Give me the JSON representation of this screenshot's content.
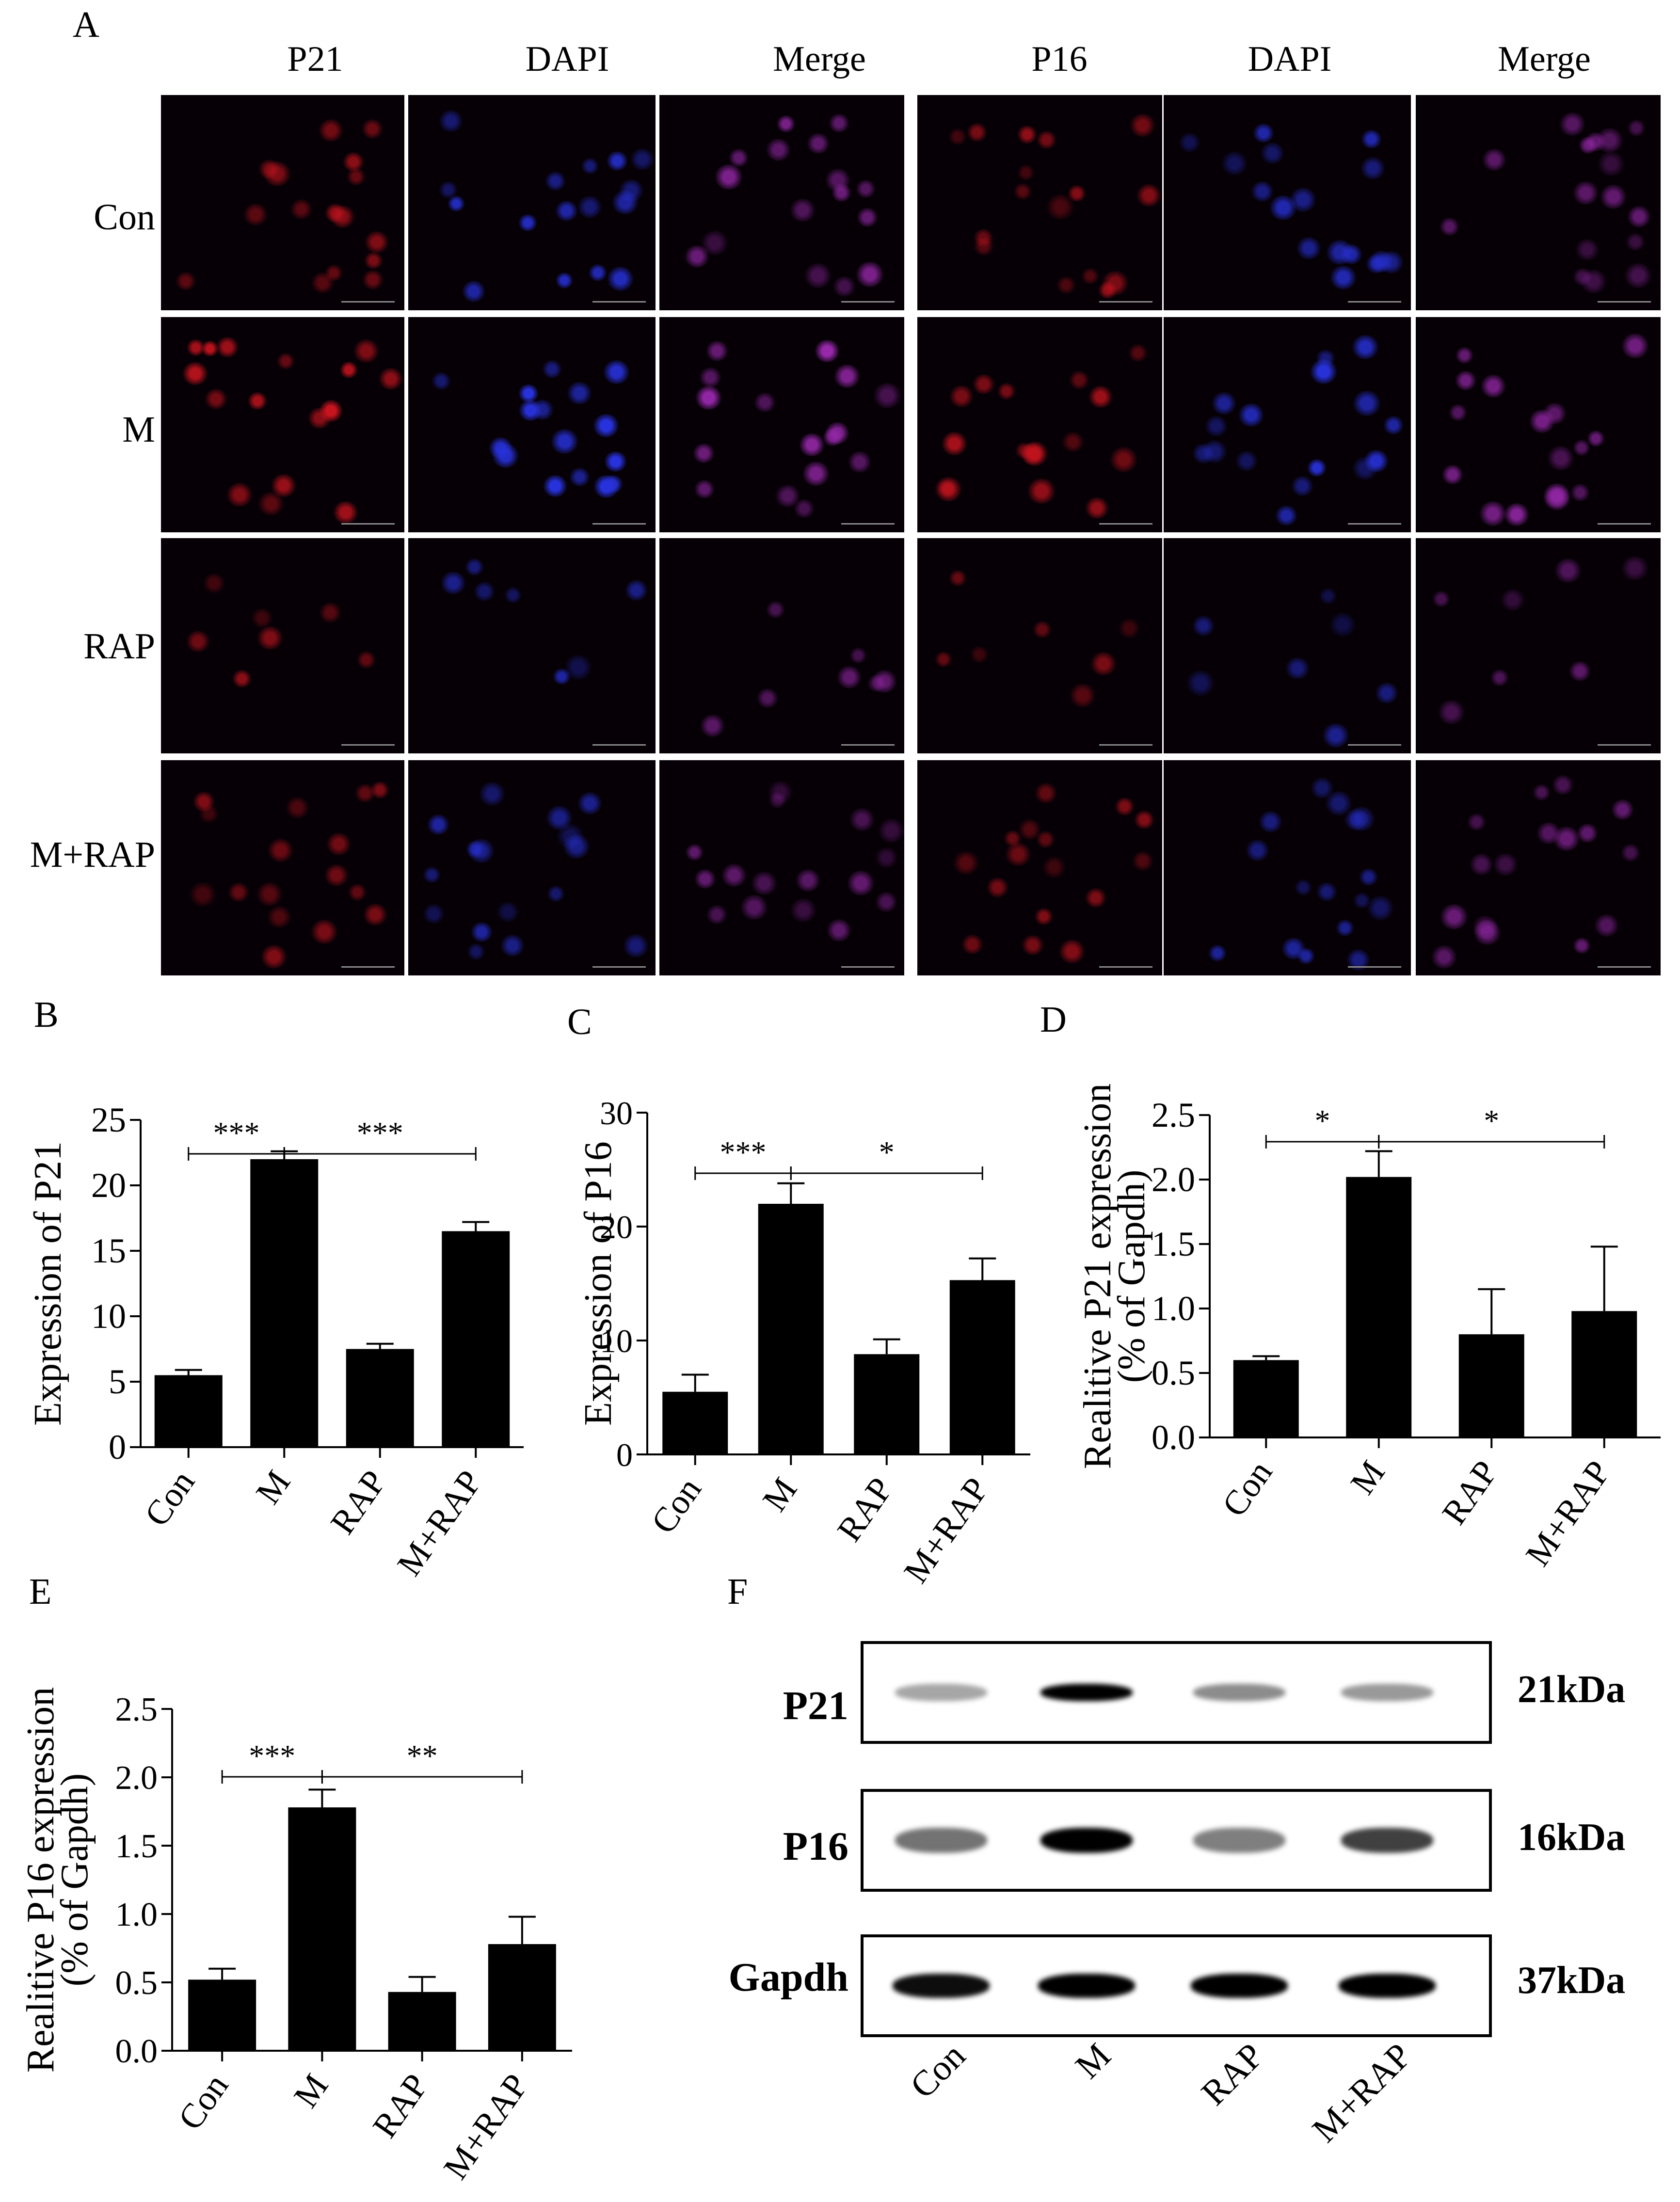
{
  "panel_letters": {
    "a": "A",
    "b": "B",
    "c": "C",
    "d": "D",
    "e": "E",
    "f": "F"
  },
  "panel_a": {
    "col_headers": [
      "P21",
      "DAPI",
      "Merge",
      "P16",
      "DAPI",
      "Merge"
    ],
    "row_labels": [
      "Con",
      "M",
      "RAP",
      "M+RAP"
    ]
  },
  "chart_data": [
    {
      "panel": "B",
      "type": "bar",
      "categories": [
        "Con",
        "M",
        "RAP",
        "M+RAP"
      ],
      "values": [
        5.5,
        22,
        7.5,
        16.5
      ],
      "errors": [
        0.4,
        0.6,
        0.4,
        0.7
      ],
      "ylabel": "Expression of P21",
      "ylim": [
        0,
        25
      ],
      "yticks": [
        "0",
        "5",
        "10",
        "15",
        "20",
        "25"
      ],
      "significance": [
        {
          "label": "***",
          "from": 0,
          "to": 1
        },
        {
          "label": "***",
          "from": 1,
          "to": 3
        }
      ]
    },
    {
      "panel": "C",
      "type": "bar",
      "categories": [
        "Con",
        "M",
        "RAP",
        "M+RAP"
      ],
      "values": [
        5.5,
        22,
        8.8,
        15.3
      ],
      "errors": [
        1.5,
        1.8,
        1.3,
        1.9
      ],
      "ylabel": "Expression of P16",
      "ylim": [
        0,
        30
      ],
      "yticks": [
        "0",
        "10",
        "20",
        "30"
      ],
      "significance": [
        {
          "label": "***",
          "from": 0,
          "to": 1
        },
        {
          "label": "*",
          "from": 1,
          "to": 3
        }
      ]
    },
    {
      "panel": "D",
      "type": "bar",
      "categories": [
        "Con",
        "M",
        "RAP",
        "M+RAP"
      ],
      "values": [
        0.6,
        2.02,
        0.8,
        0.98
      ],
      "errors": [
        0.03,
        0.2,
        0.35,
        0.5
      ],
      "ylabel": "Realitive P21 expression",
      "ylabel2": "(% of Gapdh)",
      "ylim": [
        0,
        2.5
      ],
      "yticks": [
        "0.0",
        "0.5",
        "1.0",
        "1.5",
        "2.0",
        "2.5"
      ],
      "significance": [
        {
          "label": "*",
          "from": 0,
          "to": 1
        },
        {
          "label": "*",
          "from": 1,
          "to": 3
        }
      ]
    },
    {
      "panel": "E",
      "type": "bar",
      "categories": [
        "Con",
        "M",
        "RAP",
        "M+RAP"
      ],
      "values": [
        0.52,
        1.78,
        0.43,
        0.78
      ],
      "errors": [
        0.08,
        0.13,
        0.11,
        0.2
      ],
      "ylabel": "Realitive P16 expression",
      "ylabel2": "(% of Gapdh)",
      "ylim": [
        0,
        2.5
      ],
      "yticks": [
        "0.0",
        "0.5",
        "1.0",
        "1.5",
        "2.0",
        "2.5"
      ],
      "significance": [
        {
          "label": "***",
          "from": 0,
          "to": 1
        },
        {
          "label": "**",
          "from": 1,
          "to": 3
        }
      ]
    }
  ],
  "panel_f": {
    "rows": [
      {
        "label": "P21",
        "kda": "21kDa",
        "intensity": [
          0.35,
          1.0,
          0.45,
          0.4
        ]
      },
      {
        "label": "P16",
        "kda": "16kDa",
        "intensity": [
          0.55,
          1.0,
          0.5,
          0.75
        ]
      },
      {
        "label": "Gapdh",
        "kda": "37kDa",
        "intensity": [
          0.95,
          1.0,
          1.0,
          1.0
        ]
      }
    ],
    "lanes": [
      "Con",
      "M",
      "RAP",
      "M+RAP"
    ]
  }
}
